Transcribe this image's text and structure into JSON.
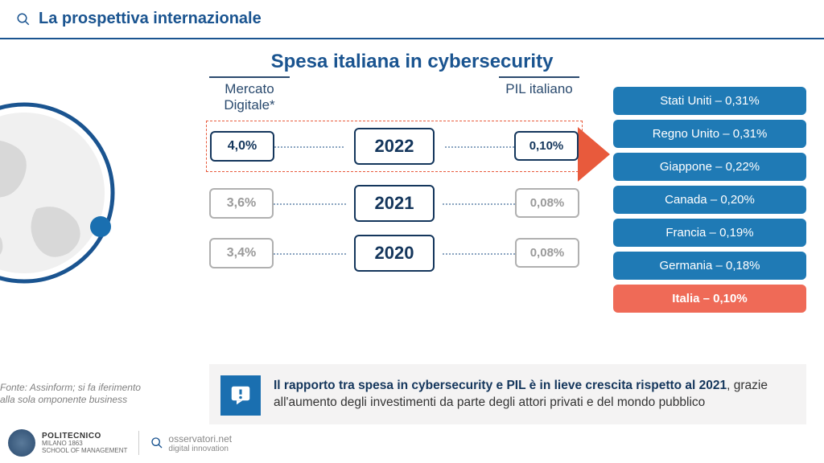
{
  "colors": {
    "primary_blue": "#1a5490",
    "dark_navy": "#14365c",
    "accent_red": "#e85a3c",
    "grey_border": "#b0b0b0",
    "grey_text": "#9a9a9a",
    "country_blue": "#1f7ab5",
    "callout_bg": "#f4f3f3",
    "callout_icon_bg": "#1a6fb0"
  },
  "header": {
    "title": "La prospettiva internazionale"
  },
  "main_title": "Spesa italiana in cybersecurity",
  "columns": {
    "left": "Mercato\nDigitale*",
    "right": "PIL\nitaliano"
  },
  "rows": [
    {
      "year": "2022",
      "left": "4,0%",
      "right": "0,10%",
      "highlighted": true,
      "style": "dark"
    },
    {
      "year": "2021",
      "left": "3,6%",
      "right": "0,08%",
      "highlighted": false,
      "style": "grey"
    },
    {
      "year": "2020",
      "left": "3,4%",
      "right": "0,08%",
      "highlighted": false,
      "style": "grey"
    }
  ],
  "countries": [
    {
      "label": "Stati Uniti – 0,31%",
      "color": "#1f7ab5"
    },
    {
      "label": "Regno Unito – 0,31%",
      "color": "#1f7ab5"
    },
    {
      "label": "Giappone – 0,22%",
      "color": "#1f7ab5"
    },
    {
      "label": "Canada – 0,20%",
      "color": "#1f7ab5"
    },
    {
      "label": "Francia – 0,19%",
      "color": "#1f7ab5"
    },
    {
      "label": "Germania – 0,18%",
      "color": "#1f7ab5"
    },
    {
      "label": "Italia – 0,10%",
      "color": "#ef6a57",
      "bold": true
    }
  ],
  "callout": {
    "bold": "Il rapporto tra spesa in cybersecurity e PIL è in lieve crescita rispetto al 2021",
    "rest": ", grazie all'aumento degli investimenti da parte degli attori privati e del mondo pubblico"
  },
  "source": "Fonte: Assinform; si fa iferimento alla sola omponente business",
  "footer": {
    "poli_line1": "POLITECNICO",
    "poli_line2": "MILANO 1863",
    "poli_line3": "SCHOOL OF MANAGEMENT",
    "oss_main": "osservatori",
    "oss_suffix": ".net",
    "oss_sub": "digital innovation"
  }
}
